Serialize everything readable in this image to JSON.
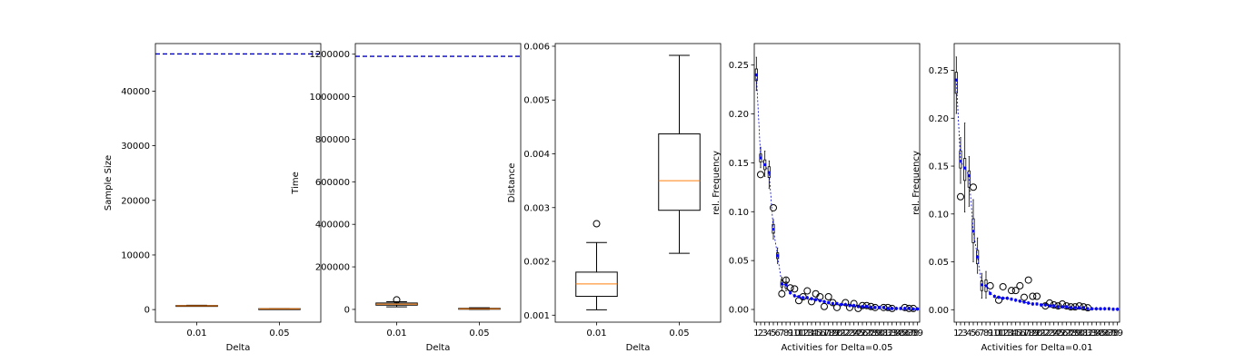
{
  "chart_data": [
    {
      "type": "box",
      "xlabel": "Delta",
      "ylabel": "Sample Size",
      "categories": [
        "0.01",
        "0.05"
      ],
      "ylim": [
        -2300,
        48700
      ],
      "yticks": [
        0,
        10000,
        20000,
        30000,
        40000
      ],
      "ytick_labels": [
        "0",
        "10000",
        "20000",
        "30000",
        "40000"
      ],
      "boxes": [
        {
          "whislo": 600,
          "q1": 650,
          "med": 700,
          "q3": 750,
          "whishi": 800,
          "fliers": []
        },
        {
          "whislo": 80,
          "q1": 110,
          "med": 140,
          "q3": 170,
          "whishi": 200,
          "fliers": []
        }
      ],
      "reference_line": {
        "y": 46800,
        "color": "#0000cc",
        "style": "dashed"
      }
    },
    {
      "type": "box",
      "xlabel": "Delta",
      "ylabel": "Time",
      "categories": [
        "0.01",
        "0.05"
      ],
      "ylim": [
        -60000,
        1250000
      ],
      "yticks": [
        0,
        200000,
        400000,
        600000,
        800000,
        1000000,
        1200000
      ],
      "ytick_labels": [
        "0",
        "200000",
        "400000",
        "600000",
        "800000",
        "1000000",
        "1200000"
      ],
      "boxes": [
        {
          "whislo": 12000,
          "q1": 20000,
          "med": 25000,
          "q3": 30000,
          "whishi": 36000,
          "fliers": [
            45000
          ]
        },
        {
          "whislo": 0,
          "q1": 1500,
          "med": 3000,
          "q3": 5000,
          "whishi": 8000,
          "fliers": []
        }
      ],
      "reference_line": {
        "y": 1190000,
        "color": "#0000cc",
        "style": "dashed"
      }
    },
    {
      "type": "box",
      "xlabel": "Delta",
      "ylabel": "Distance",
      "categories": [
        "0.01",
        "0.05"
      ],
      "ylim": [
        0.00087,
        0.00605
      ],
      "yticks": [
        0.001,
        0.002,
        0.003,
        0.004,
        0.005,
        0.006
      ],
      "ytick_labels": [
        "0.001",
        "0.002",
        "0.003",
        "0.004",
        "0.005",
        "0.006"
      ],
      "boxes": [
        {
          "whislo": 0.0011,
          "q1": 0.00135,
          "med": 0.00158,
          "q3": 0.0018,
          "whishi": 0.00235,
          "fliers": [
            0.0027
          ]
        },
        {
          "whislo": 0.00215,
          "q1": 0.00295,
          "med": 0.0035,
          "q3": 0.00437,
          "whishi": 0.00583,
          "fliers": []
        }
      ]
    },
    {
      "type": "box",
      "xlabel": "Activities for Delta=0.05",
      "ylabel": "rel. Frequency",
      "categories": [
        "1",
        "2",
        "3",
        "4",
        "5",
        "6",
        "7",
        "8",
        "9",
        "10",
        "11",
        "12",
        "13",
        "14",
        "15",
        "16",
        "17",
        "18",
        "19",
        "20",
        "21",
        "22",
        "23",
        "24",
        "25",
        "26",
        "27",
        "28",
        "29",
        "30",
        "31",
        "32",
        "33",
        "34",
        "35",
        "36",
        "37",
        "38",
        "39"
      ],
      "ylim": [
        -0.013,
        0.272
      ],
      "yticks": [
        0,
        0.05,
        0.1,
        0.15,
        0.2,
        0.25
      ],
      "ytick_labels": [
        "0.00",
        "0.05",
        "0.10",
        "0.15",
        "0.20",
        "0.25"
      ],
      "reference_values": [
        0.24,
        0.155,
        0.148,
        0.14,
        0.082,
        0.055,
        0.026,
        0.025,
        0.017,
        0.014,
        0.013,
        0.012,
        0.012,
        0.011,
        0.01,
        0.009,
        0.008,
        0.007,
        0.006,
        0.006,
        0.005,
        0.005,
        0.004,
        0.004,
        0.003,
        0.003,
        0.003,
        0.002,
        0.002,
        0.002,
        0.002,
        0.001,
        0.001,
        0.001,
        0.001,
        0.001,
        0.001,
        0.0005,
        0.0005
      ],
      "box_values": [
        {
          "q1": 0.234,
          "q3": 0.246,
          "whislo": 0.224,
          "whishi": 0.258
        },
        {
          "q1": 0.151,
          "q3": 0.159,
          "whislo": 0.145,
          "whishi": 0.166
        },
        {
          "q1": 0.143,
          "q3": 0.153,
          "whislo": 0.136,
          "whishi": 0.162
        },
        {
          "q1": 0.135,
          "q3": 0.146,
          "whislo": 0.124,
          "whishi": 0.152
        },
        {
          "q1": 0.078,
          "q3": 0.087,
          "whislo": 0.072,
          "whishi": 0.092
        },
        {
          "q1": 0.052,
          "q3": 0.058,
          "whislo": 0.047,
          "whishi": 0.063
        },
        {
          "q1": 0.023,
          "q3": 0.029,
          "whislo": 0.02,
          "whishi": 0.033
        },
        {
          "q1": 0.022,
          "q3": 0.028,
          "whislo": 0.019,
          "whishi": 0.032
        }
      ],
      "fliers": [
        {
          "x": 2,
          "y": 0.138
        },
        {
          "x": 5,
          "y": 0.104
        },
        {
          "x": 7,
          "y": 0.016
        },
        {
          "x": 8,
          "y": 0.03
        },
        {
          "x": 9,
          "y": 0.022
        },
        {
          "x": 10,
          "y": 0.021
        },
        {
          "x": 11,
          "y": 0.009
        },
        {
          "x": 12,
          "y": 0.013
        },
        {
          "x": 13,
          "y": 0.019
        },
        {
          "x": 14,
          "y": 0.008
        },
        {
          "x": 15,
          "y": 0.016
        },
        {
          "x": 16,
          "y": 0.013
        },
        {
          "x": 17,
          "y": 0.003
        },
        {
          "x": 18,
          "y": 0.013
        },
        {
          "x": 19,
          "y": 0.007
        },
        {
          "x": 20,
          "y": 0.002
        },
        {
          "x": 22,
          "y": 0.007
        },
        {
          "x": 23,
          "y": 0.002
        },
        {
          "x": 24,
          "y": 0.006
        },
        {
          "x": 25,
          "y": 0.001
        },
        {
          "x": 26,
          "y": 0.004
        },
        {
          "x": 27,
          "y": 0.004
        },
        {
          "x": 28,
          "y": 0.003
        },
        {
          "x": 29,
          "y": 0.002
        },
        {
          "x": 31,
          "y": 0.002
        },
        {
          "x": 32,
          "y": 0.002
        },
        {
          "x": 33,
          "y": 0.001
        },
        {
          "x": 36,
          "y": 0.002
        },
        {
          "x": 37,
          "y": 0.001
        },
        {
          "x": 38,
          "y": 0.001
        }
      ]
    },
    {
      "type": "box",
      "xlabel": "Activities for Delta=0.01",
      "ylabel": "rel. Frequency",
      "categories": [
        "1",
        "2",
        "3",
        "4",
        "5",
        "6",
        "7",
        "8",
        "9",
        "10",
        "11",
        "12",
        "13",
        "14",
        "15",
        "16",
        "17",
        "18",
        "19",
        "20",
        "21",
        "22",
        "23",
        "24",
        "25",
        "26",
        "27",
        "28",
        "29",
        "30",
        "31",
        "32",
        "33",
        "34",
        "35",
        "36",
        "37",
        "38",
        "39"
      ],
      "ylim": [
        -0.013,
        0.278
      ],
      "yticks": [
        0,
        0.05,
        0.1,
        0.15,
        0.2,
        0.25
      ],
      "ytick_labels": [
        "0.00",
        "0.05",
        "0.10",
        "0.15",
        "0.20",
        "0.25"
      ],
      "reference_values": [
        0.24,
        0.155,
        0.148,
        0.14,
        0.082,
        0.055,
        0.026,
        0.025,
        0.017,
        0.014,
        0.013,
        0.012,
        0.012,
        0.011,
        0.01,
        0.009,
        0.008,
        0.007,
        0.006,
        0.006,
        0.005,
        0.005,
        0.004,
        0.004,
        0.003,
        0.003,
        0.003,
        0.002,
        0.002,
        0.002,
        0.002,
        0.001,
        0.001,
        0.001,
        0.001,
        0.001,
        0.001,
        0.0005,
        0.0005
      ],
      "box_values": [
        {
          "q1": 0.226,
          "q3": 0.248,
          "whislo": 0.205,
          "whishi": 0.264
        },
        {
          "q1": 0.148,
          "q3": 0.166,
          "whislo": 0.132,
          "whishi": 0.18
        },
        {
          "q1": 0.135,
          "q3": 0.158,
          "whislo": 0.102,
          "whishi": 0.195
        },
        {
          "q1": 0.128,
          "q3": 0.145,
          "whislo": 0.108,
          "whishi": 0.16
        },
        {
          "q1": 0.07,
          "q3": 0.095,
          "whislo": 0.05,
          "whishi": 0.115
        },
        {
          "q1": 0.048,
          "q3": 0.062,
          "whislo": 0.038,
          "whishi": 0.075
        },
        {
          "q1": 0.02,
          "q3": 0.03,
          "whislo": 0.012,
          "whishi": 0.038
        },
        {
          "q1": 0.019,
          "q3": 0.031,
          "whislo": 0.012,
          "whishi": 0.04
        }
      ],
      "fliers": [
        {
          "x": 2,
          "y": 0.118
        },
        {
          "x": 5,
          "y": 0.128
        },
        {
          "x": 9,
          "y": 0.025
        },
        {
          "x": 11,
          "y": 0.01
        },
        {
          "x": 12,
          "y": 0.024
        },
        {
          "x": 14,
          "y": 0.02
        },
        {
          "x": 15,
          "y": 0.02
        },
        {
          "x": 16,
          "y": 0.025
        },
        {
          "x": 17,
          "y": 0.013
        },
        {
          "x": 18,
          "y": 0.031
        },
        {
          "x": 19,
          "y": 0.014
        },
        {
          "x": 20,
          "y": 0.014
        },
        {
          "x": 22,
          "y": 0.004
        },
        {
          "x": 23,
          "y": 0.007
        },
        {
          "x": 24,
          "y": 0.005
        },
        {
          "x": 25,
          "y": 0.004
        },
        {
          "x": 26,
          "y": 0.006
        },
        {
          "x": 27,
          "y": 0.004
        },
        {
          "x": 28,
          "y": 0.003
        },
        {
          "x": 29,
          "y": 0.003
        },
        {
          "x": 30,
          "y": 0.004
        },
        {
          "x": 31,
          "y": 0.003
        },
        {
          "x": 32,
          "y": 0.002
        }
      ]
    }
  ]
}
